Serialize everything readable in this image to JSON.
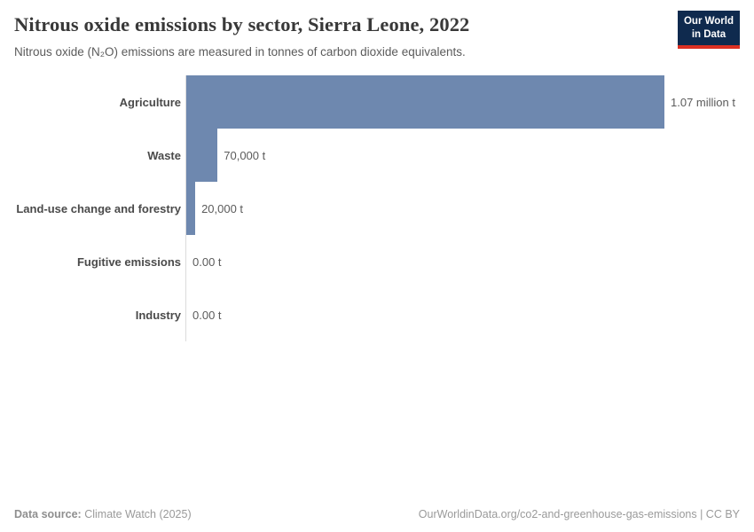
{
  "header": {
    "title": "Nitrous oxide emissions by sector, Sierra Leone, 2022",
    "subtitle": "Nitrous oxide (N₂O) emissions are measured in tonnes of carbon dioxide equivalents."
  },
  "logo": {
    "line1": "Our World",
    "line2": "in Data",
    "bg_color": "#0f2a4e",
    "stripe_color": "#dc3022"
  },
  "chart_data": {
    "type": "bar",
    "orientation": "horizontal",
    "title": "Nitrous oxide emissions by sector, Sierra Leone, 2022",
    "categories": [
      "Agriculture",
      "Waste",
      "Land-use change and forestry",
      "Fugitive emissions",
      "Industry"
    ],
    "values": [
      1070000,
      70000,
      20000,
      0,
      0
    ],
    "value_labels": [
      "1.07 million t",
      "70,000 t",
      "20,000 t",
      "0.00 t",
      "0.00 t"
    ],
    "xlim": [
      0,
      1070000
    ],
    "bar_color": "#6e88af",
    "grid": false,
    "legend": false
  },
  "footer": {
    "datasource_label": "Data source:",
    "datasource_value": " Climate Watch (2025)",
    "attribution": "OurWorldinData.org/co2-and-greenhouse-gas-emissions | CC BY"
  }
}
